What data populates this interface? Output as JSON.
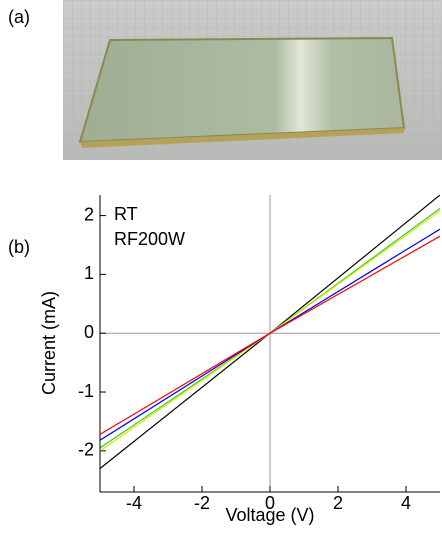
{
  "panel_labels": [
    "(a)",
    "(b)"
  ],
  "chart_data": {
    "type": "line",
    "x": [
      -5,
      0,
      5
    ],
    "series": [
      {
        "color": "#000000",
        "values": [
          -2.3,
          0,
          2.35
        ]
      },
      {
        "color": "#33cc33",
        "values": [
          -1.95,
          0,
          2.12
        ]
      },
      {
        "color": "#e6e600",
        "values": [
          -2.0,
          0,
          2.08
        ]
      },
      {
        "color": "#0000ff",
        "values": [
          -1.82,
          0,
          1.77
        ]
      },
      {
        "color": "#ff0000",
        "values": [
          -1.72,
          0,
          1.65
        ]
      }
    ],
    "xlim": [
      -5,
      5
    ],
    "ylim": [
      -2.7,
      2.35
    ],
    "xticks": [
      -4,
      -2,
      0,
      2,
      4
    ],
    "yticks": [
      -2,
      -1,
      0,
      1,
      2
    ],
    "xlabel": "Voltage (V)",
    "ylabel": "Current (mA)",
    "annotations": [
      "RT",
      "RF200W"
    ],
    "zero_lines": true
  }
}
